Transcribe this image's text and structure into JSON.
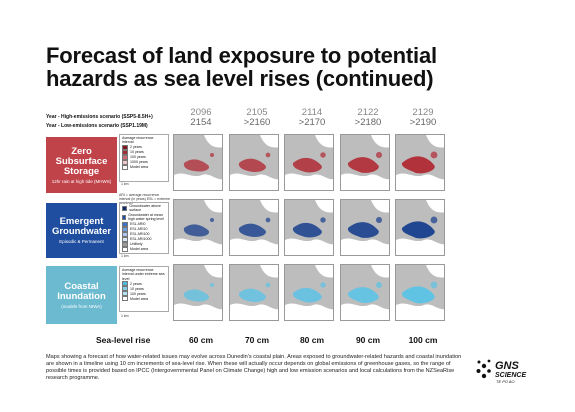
{
  "title": "Forecast of land exposure to potential hazards as sea level rises (continued)",
  "year_labels": {
    "high": "Year - High-emissions scenario (SSP5-8.5H+)",
    "low": "Year - Low-emissions scenario (SSP1.19M)"
  },
  "columns": [
    {
      "high": "2096",
      "low": "2154",
      "rise": "60 cm"
    },
    {
      "high": "2105",
      "low": ">2160",
      "rise": "70 cm"
    },
    {
      "high": "2114",
      "low": ">2170",
      "rise": "80 cm"
    },
    {
      "high": "2122",
      "low": ">2180",
      "rise": "90 cm"
    },
    {
      "high": "2129",
      "low": ">2190",
      "rise": "100 cm"
    }
  ],
  "sea_level_label": "Sea-level rise",
  "categories": [
    {
      "title": "Zero Subsurface Storage",
      "subtitle": "12hr rain at high tide (MHWS)",
      "color": "#c0434a",
      "legend_header": "Average recurrence interval",
      "legend": [
        {
          "label": "2 years",
          "color": "#7d1820"
        },
        {
          "label": "10 years",
          "color": "#a42a33"
        },
        {
          "label": "100 years",
          "color": "#d06a70"
        },
        {
          "label": "1000 years",
          "color": "#f1c6c8"
        },
        {
          "label": "Model area",
          "color": "#ffffff"
        }
      ],
      "scale": "1 km",
      "fill": "#b02a34"
    },
    {
      "title": "Emergent Groundwater",
      "subtitle": "Episodic & Permanent",
      "color": "#1f4ea1",
      "note": "ARI = average recurrence interval (in years) ESL = extreme sea level",
      "legend": [
        {
          "label": "Groundwater above surface",
          "color": "#0b2a6b"
        },
        {
          "label": "Groundwater at mean high water spring level",
          "color": "#1d4ea3"
        },
        {
          "label": "ESL ARI0",
          "color": "#3d73c6"
        },
        {
          "label": "ESL ARI10",
          "color": "#6f9fe0"
        },
        {
          "label": "ESL ARI100",
          "color": "#a9c7f0"
        },
        {
          "label": "ESL ARI1000",
          "color": "#d8e6f8"
        },
        {
          "label": "Unlikely",
          "color": "#9a9a9a"
        },
        {
          "label": "Model area",
          "color": "#ffffff"
        }
      ],
      "scale": "1 km",
      "fill": "#183f8e"
    },
    {
      "title": "Coastal Inundation",
      "subtitle": "(models from NIWA)",
      "color": "#6bbad0",
      "legend_header": "Average recurrence interval under extreme sea level",
      "legend": [
        {
          "label": "2 years",
          "color": "#4fb6dc"
        },
        {
          "label": "10 years",
          "color": "#7fcde9"
        },
        {
          "label": "100 years",
          "color": "#b3e2f3"
        },
        {
          "label": "Model area",
          "color": "#ffffff"
        }
      ],
      "scale": "1 km",
      "fill": "#5cc3e6"
    }
  ],
  "description": "Maps showing a forecast of how water-related issues may evolve across Dunedin's coastal plain. Areas exposed to groundwater-related hazards and coastal inundation are shown in a timeline using 10 cm increments of sea-level rise. When these will actually occur depends on global emissions of greenhouse gases, so the range of possible times is provided based on IPCC (Intergovernmental Panel on Climate Change) high and low emission scenarios and local calculations from the NZSeaRise research programme.",
  "logo": {
    "line1": "GNS",
    "line2": "SCIENCE",
    "line3": "TE PŪ AO"
  }
}
